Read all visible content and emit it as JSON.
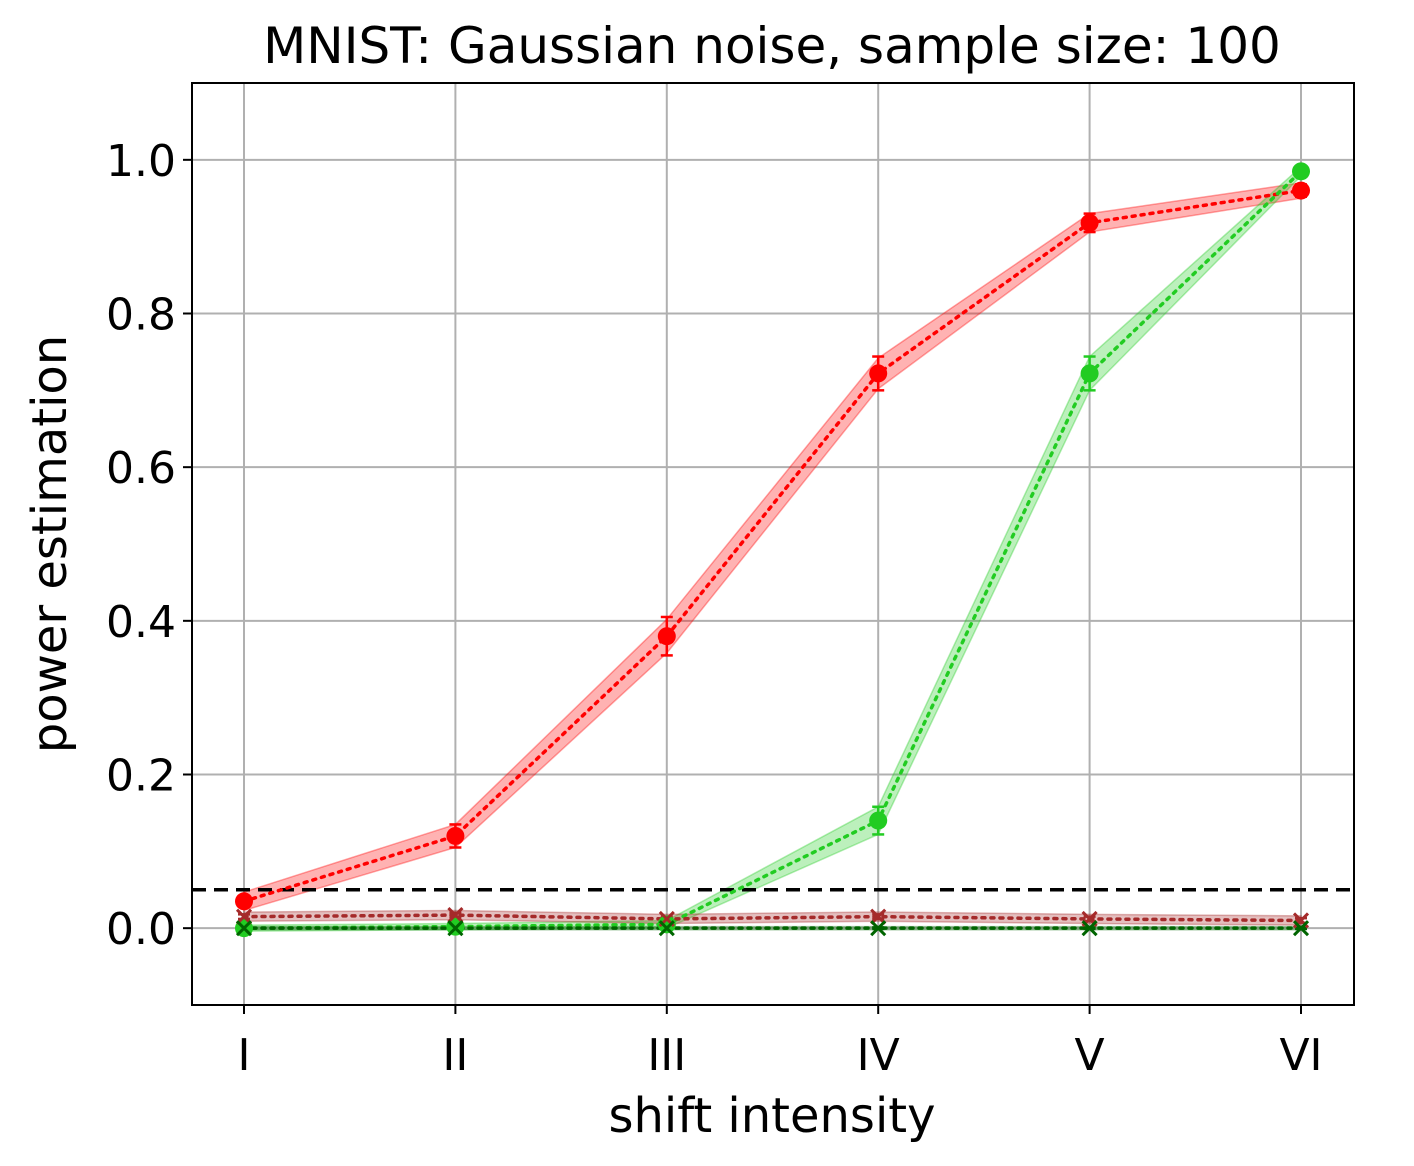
{
  "chart_data": {
    "type": "line",
    "title": "MNIST: Gaussian noise, sample size: 100",
    "xlabel": "shift intensity",
    "ylabel": "power estimation",
    "categories": [
      "I",
      "II",
      "III",
      "IV",
      "V",
      "VI"
    ],
    "ylim": [
      -0.1,
      1.1
    ],
    "yticks": [
      "0.0",
      "0.2",
      "0.4",
      "0.6",
      "0.8",
      "1.0"
    ],
    "ytick_values": [
      0.0,
      0.2,
      0.4,
      0.6,
      0.8,
      1.0
    ],
    "grid": true,
    "reference_line": {
      "y": 0.05,
      "style": "dashed",
      "color": "#000000"
    },
    "series": [
      {
        "color": "#ff0000",
        "marker": "circle",
        "line_style": "dotted",
        "values": [
          0.035,
          0.12,
          0.38,
          0.722,
          0.918,
          0.96
        ],
        "band": [
          0.012,
          0.015,
          0.022,
          0.02,
          0.012,
          0.01
        ],
        "error": [
          0.005,
          0.015,
          0.025,
          0.022,
          0.012,
          0.008
        ]
      },
      {
        "color": "#22cc22",
        "marker": "circle",
        "line_style": "dotted",
        "values": [
          0.0,
          0.002,
          0.005,
          0.14,
          0.722,
          0.985
        ],
        "band": [
          0.004,
          0.004,
          0.005,
          0.018,
          0.022,
          0.006
        ],
        "error": [
          0.002,
          0.002,
          0.004,
          0.018,
          0.022,
          0.004
        ]
      },
      {
        "color": "#a52a2a",
        "marker": "x",
        "line_style": "dotted",
        "values": [
          0.015,
          0.017,
          0.012,
          0.015,
          0.012,
          0.01
        ],
        "band": [
          0.006,
          0.006,
          0.006,
          0.006,
          0.006,
          0.006
        ],
        "error": [
          0.003,
          0.003,
          0.003,
          0.003,
          0.003,
          0.003
        ]
      },
      {
        "color": "#006400",
        "marker": "x",
        "line_style": "dotted",
        "values": [
          0.0,
          0.0,
          0.0,
          0.0,
          0.0,
          0.0
        ],
        "band": [
          0.002,
          0.002,
          0.002,
          0.002,
          0.002,
          0.002
        ],
        "error": [
          0.001,
          0.001,
          0.001,
          0.001,
          0.001,
          0.001
        ]
      }
    ]
  }
}
